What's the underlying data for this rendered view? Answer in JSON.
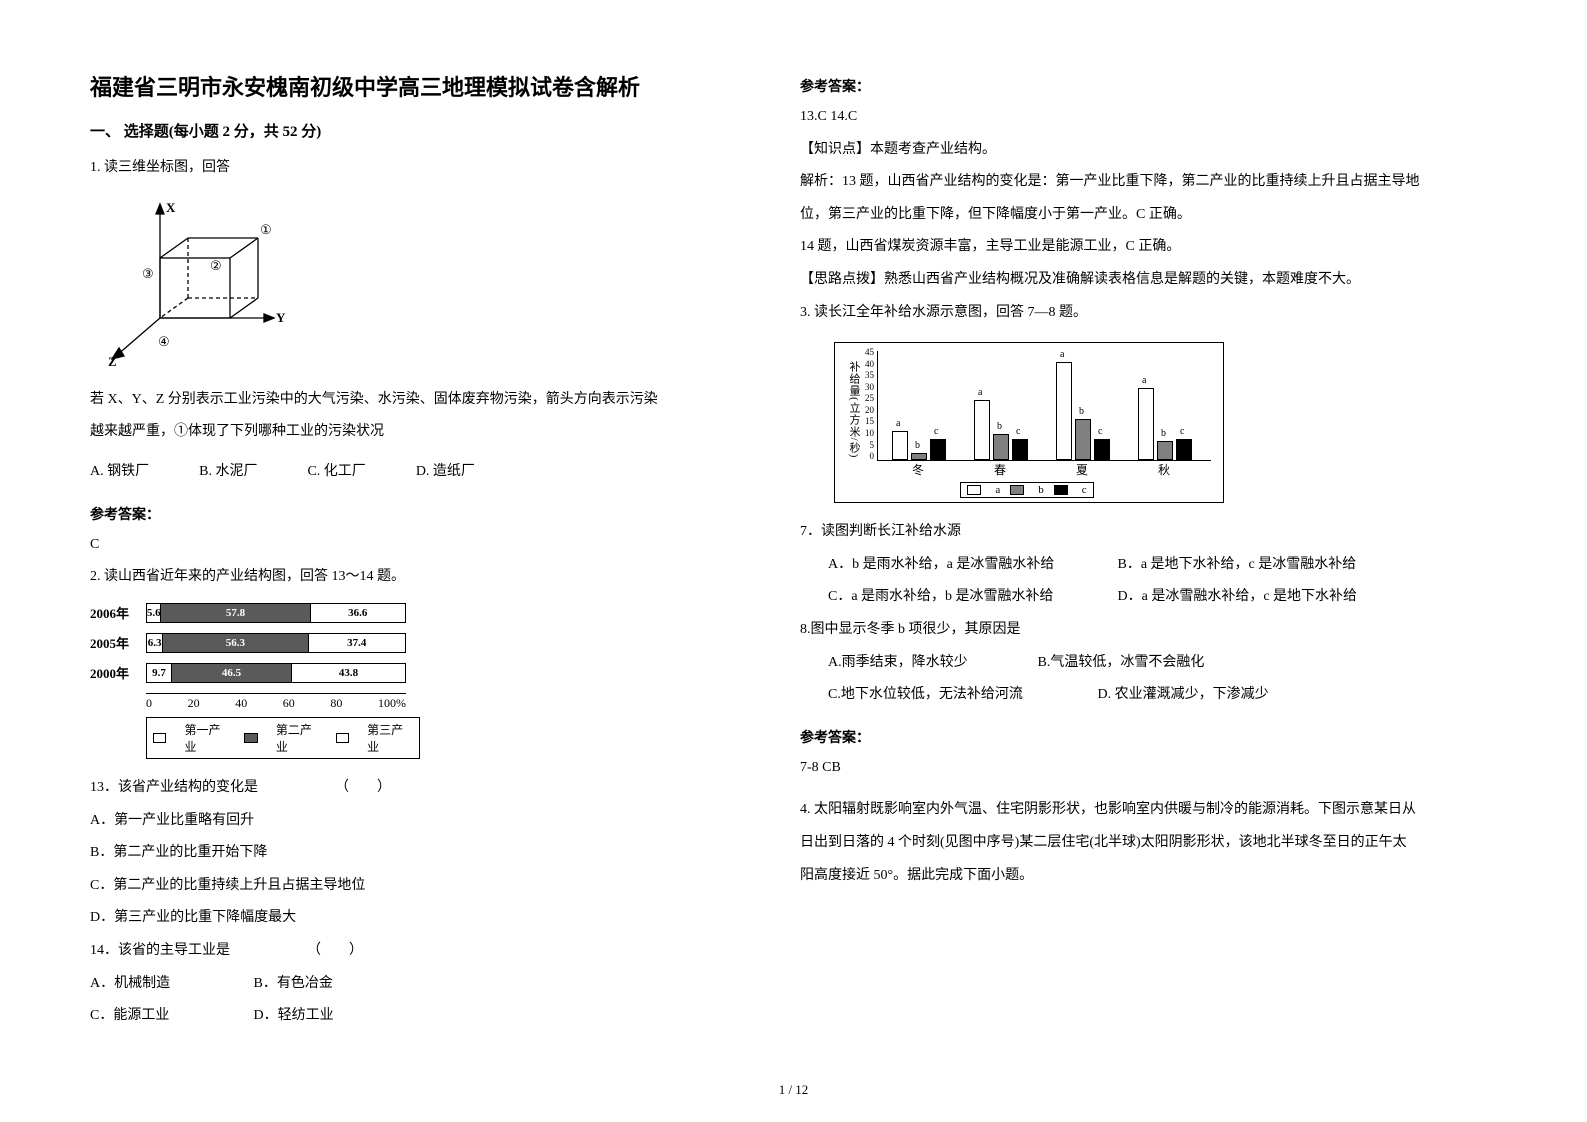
{
  "title": "福建省三明市永安槐南初级中学高三地理模拟试卷含解析",
  "section1": "一、 选择题(每小题 2 分，共 52 分)",
  "q1": {
    "stem": "1. 读三维坐标图，回答",
    "diagram": {
      "axes": [
        "X",
        "Y",
        "Z"
      ],
      "node_labels": [
        "①",
        "②",
        "③",
        "④"
      ],
      "stroke": "#000000",
      "dash": "4 3"
    },
    "desc1": "若 X、Y、Z 分别表示工业污染中的大气污染、水污染、固体废弃物污染，箭头方向表示污染",
    "desc2": "越来越严重，①体现了下列哪种工业的污染状况",
    "opts": {
      "A": "A. 钢铁厂",
      "B": "B. 水泥厂",
      "C": "C. 化工厂",
      "D": "D. 造纸厂"
    },
    "ans_head": "参考答案：",
    "ans": "C"
  },
  "q2": {
    "stem": "2. 读山西省近年来的产业结构图，回答 13～14 题。",
    "chart": {
      "type": "stacked-bar-horizontal",
      "rows": [
        {
          "label": "2006年",
          "seg1": 5.6,
          "seg2": 57.8,
          "seg3": 36.6
        },
        {
          "label": "2005年",
          "seg1": 6.3,
          "seg2": 56.3,
          "seg3": 37.4
        },
        {
          "label": "2000年",
          "seg1": 9.7,
          "seg2": 46.5,
          "seg3": 43.8
        }
      ],
      "xticks": [
        "0",
        "20",
        "40",
        "60",
        "80",
        "100%"
      ],
      "legend": [
        "第一产业",
        "第二产业",
        "第三产业"
      ],
      "colors": {
        "seg1": "#ffffff",
        "seg2": "#5a5a5a",
        "seg3": "#ffffff",
        "border": "#000000"
      }
    },
    "sub13": "13．该省产业结构的变化是　　　　　　（　　）",
    "sub13opts": {
      "A": "A．第一产业比重略有回升",
      "B": "B．第二产业的比重开始下降",
      "C": "C．第二产业的比重持续上升且占据主导地位",
      "D": "D．第三产业的比重下降幅度最大"
    },
    "sub14": "14．该省的主导工业是　　　　　　（　　）",
    "sub14opts": {
      "A": "A．机械制造",
      "B": "B．有色冶金",
      "C": "C．能源工业",
      "D": "D．轻纺工业"
    }
  },
  "right": {
    "ans_head": "参考答案：",
    "ans_line": "13.C  14.C",
    "k1": "【知识点】本题考查产业结构。",
    "k2": "解析：13 题，山西省产业结构的变化是：第一产业比重下降，第二产业的比重持续上升且占据主导地",
    "k3": "位，第三产业的比重下降，但下降幅度小于第一产业。C 正确。",
    "k4": "14 题，山西省煤炭资源丰富，主导工业是能源工业，C 正确。",
    "k5": "【思路点拨】熟悉山西省产业结构概况及准确解读表格信息是解题的关键，本题难度不大。",
    "q3stem": "3. 读长江全年补给水源示意图，回答 7—8 题。",
    "chart": {
      "type": "grouped-bar",
      "ylabel": "补给量(立方米/秒)",
      "yticks": [
        "45",
        "40",
        "35",
        "30",
        "25",
        "20",
        "15",
        "10",
        "5",
        "0"
      ],
      "seasons": [
        "冬",
        "春",
        "夏",
        "秋"
      ],
      "series": [
        "a",
        "b",
        "c"
      ],
      "colors": {
        "a": "#ffffff",
        "b": "#808080",
        "c": "#000000",
        "border": "#000000"
      },
      "values": {
        "冬": {
          "a": 12,
          "b": 3,
          "c": 9
        },
        "春": {
          "a": 25,
          "b": 11,
          "c": 9
        },
        "夏": {
          "a": 41,
          "b": 17,
          "c": 9
        },
        "秋": {
          "a": 30,
          "b": 8,
          "c": 9
        }
      },
      "ymax": 45
    },
    "q7": "7．读图判断长江补给水源",
    "q7opts": {
      "A": "A．b 是雨水补给，a 是冰雪融水补给",
      "B": "B．a 是地下水补给，c 是冰雪融水补给",
      "C": "C．a 是雨水补给，b 是冰雪融水补给",
      "D": "D．a 是冰雪融水补给，c 是地下水补给"
    },
    "q8": "8.图中显示冬季 b 项很少，其原因是",
    "q8opts": {
      "A": "A.雨季结束，降水较少",
      "B": "B.气温较低，冰雪不会融化",
      "C": "C.地下水位较低，无法补给河流",
      "D": "D. 农业灌溉减少，下渗减少"
    },
    "ans2_head": "参考答案：",
    "ans2": "7-8 CB",
    "q4a": "4. 太阳辐射既影响室内外气温、住宅阴影形状，也影响室内供暖与制冷的能源消耗。下图示意某日从",
    "q4b": "日出到日落的 4 个时刻(见图中序号)某二层住宅(北半球)太阳阴影形状，该地北半球冬至日的正午太",
    "q4c": "阳高度接近 50°。据此完成下面小题。"
  },
  "footer": "1 / 12"
}
